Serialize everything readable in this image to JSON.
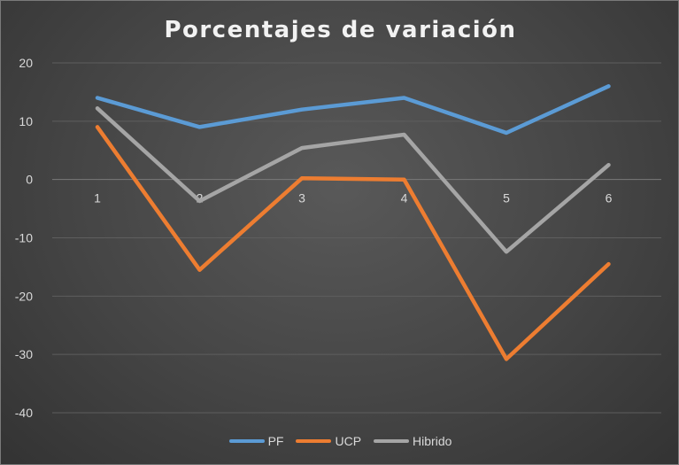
{
  "chart_data": {
    "type": "line",
    "title": "Porcentajes de variación",
    "xlabel": "",
    "ylabel": "",
    "categories": [
      "1",
      "2",
      "3",
      "4",
      "5",
      "6"
    ],
    "ylim": [
      -40,
      20
    ],
    "yticks": [
      20,
      10,
      0,
      -10,
      -20,
      -30,
      -40
    ],
    "grid": true,
    "legend_position": "bottom",
    "series": [
      {
        "name": "PF",
        "color": "#5b9bd5",
        "values": [
          14,
          9,
          12,
          14,
          8,
          16
        ]
      },
      {
        "name": "UCP",
        "color": "#ed7d31",
        "values": [
          9,
          -15.5,
          0.2,
          0,
          -30.8,
          -14.5
        ]
      },
      {
        "name": "Hibrido",
        "color": "#a5a5a5",
        "values": [
          12.2,
          -3.7,
          5.4,
          7.7,
          -12.4,
          2.5
        ]
      }
    ]
  }
}
